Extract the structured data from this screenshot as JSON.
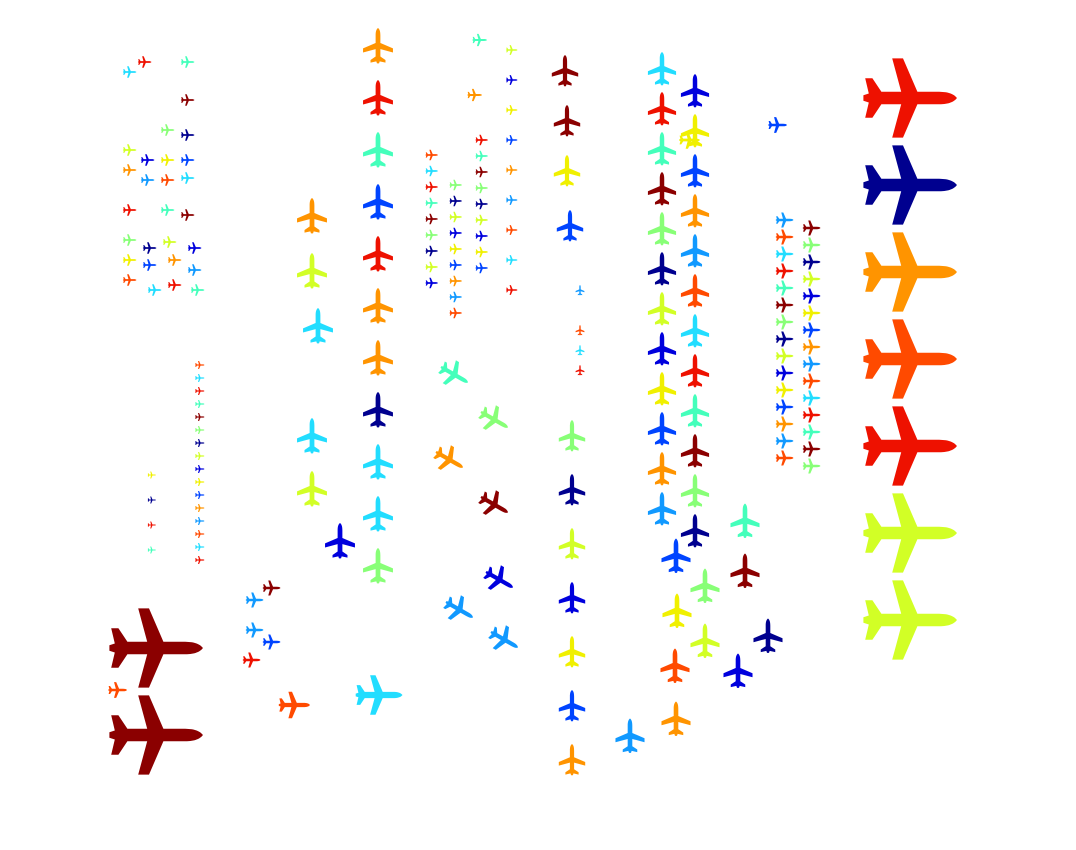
{
  "figure": {
    "background": "#ffffff",
    "colormap": "jet"
  },
  "palette": {
    "dark_red": "#8b0000",
    "red": "#ee1100",
    "orange_red": "#ff4a00",
    "orange": "#ff9400",
    "yellow": "#f0f000",
    "yellow_green": "#d2ff26",
    "light_green": "#88ff77",
    "aquamarine": "#44ffbb",
    "cyan": "#22ddff",
    "sky_blue": "#1199ff",
    "blue": "#0044ff",
    "deep_blue": "#0000dd",
    "navy": "#00008f"
  },
  "regions": {
    "left_top_cluster": "aircraft",
    "left_mid_column": "aircraft",
    "left_bottom": "aircraft",
    "center_columns": "aircraft",
    "right_small_grid": "aircraft",
    "right_large_column": "aircraft"
  }
}
